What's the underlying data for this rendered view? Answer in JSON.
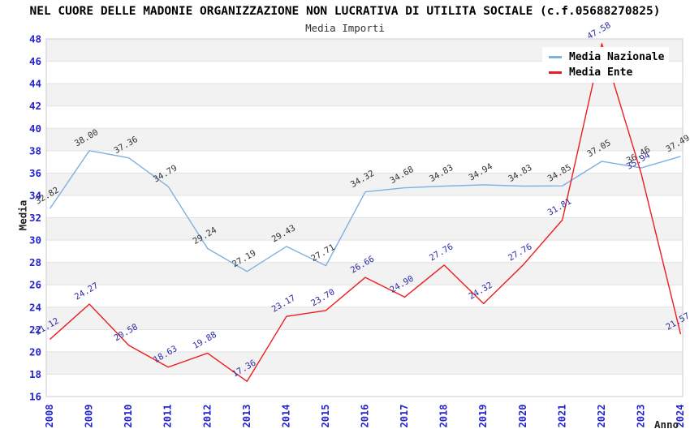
{
  "title": "NEL CUORE DELLE MADONIE ORGANIZZAZIONE NON LUCRATIVA DI UTILITA SOCIALE (c.f.05688270825)",
  "subtitle": "Media Importi",
  "legend": {
    "items": [
      {
        "name": "Media Nazionale",
        "color": "#7fb0e4"
      },
      {
        "name": "Media Ente",
        "color": "#ee1c1c"
      }
    ]
  },
  "axes": {
    "y_title": "Media",
    "x_title": "Anno",
    "y_ticks": [
      16,
      18,
      20,
      22,
      24,
      26,
      28,
      30,
      32,
      34,
      36,
      38,
      40,
      42,
      44,
      46,
      48
    ],
    "tick_label_color": "#2323cd"
  },
  "colors": {
    "band_gray": "#f2f2f2",
    "band_white": "#ffffff",
    "gridline": "#e2e2e2",
    "plot_border": "#cccccc",
    "nazionale_line": "#7fb0e4",
    "ente_line": "#ee1c1c",
    "nazionale_label": "#333333",
    "ente_label": "#2b2ba6"
  },
  "chart_data": {
    "type": "line",
    "title": "NEL CUORE DELLE MADONIE ORGANIZZAZIONE NON LUCRATIVA DI UTILITA SOCIALE (c.f.05688270825)",
    "subtitle": "Media Importi",
    "xlabel": "Anno",
    "ylabel": "Media",
    "ylim": [
      16,
      48
    ],
    "y_tick_step": 2,
    "grid": "horizontal-bands",
    "legend_position": "top-right",
    "x": [
      2008,
      2009,
      2010,
      2011,
      2012,
      2013,
      2014,
      2015,
      2016,
      2017,
      2018,
      2019,
      2020,
      2021,
      2022,
      2023,
      2024
    ],
    "series": [
      {
        "name": "Media Nazionale",
        "color": "#7fb0e4",
        "label_color": "#333333",
        "values": [
          32.82,
          38.0,
          37.36,
          34.79,
          29.24,
          27.19,
          29.43,
          27.71,
          34.32,
          34.68,
          34.83,
          34.94,
          34.83,
          34.85,
          37.05,
          36.46,
          37.49
        ]
      },
      {
        "name": "Media Ente",
        "color": "#ee1c1c",
        "label_color": "#2b2ba6",
        "values": [
          21.12,
          24.27,
          20.58,
          18.63,
          19.88,
          17.36,
          23.17,
          23.7,
          26.66,
          24.9,
          27.76,
          24.32,
          27.76,
          31.81,
          47.58,
          35.94,
          21.57
        ]
      }
    ]
  }
}
